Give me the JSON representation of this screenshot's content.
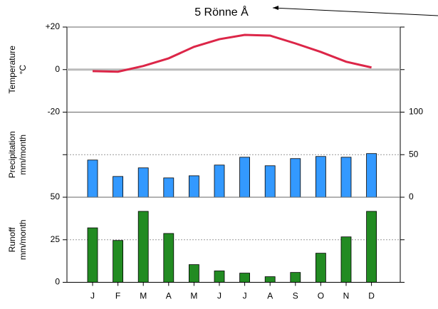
{
  "chart_data": [
    {
      "type": "line",
      "title": "5 Rönne Å",
      "ylabel": [
        "Temperature",
        "°C"
      ],
      "categories": [
        "J",
        "F",
        "M",
        "A",
        "M",
        "J",
        "J",
        "A",
        "S",
        "O",
        "N",
        "D"
      ],
      "values": [
        -0.7,
        -1,
        1.7,
        5.3,
        10.7,
        14.3,
        16.3,
        16,
        12.3,
        8.3,
        3.7,
        1
      ],
      "color": "#dc2648",
      "ylim": [
        -20,
        20
      ],
      "yticks": [
        {
          "value": 20,
          "label": "+20"
        },
        0,
        -20
      ],
      "ytick_side": "left",
      "grid": true
    },
    {
      "type": "bar",
      "ylabel": [
        "Precipitation",
        "mm/month"
      ],
      "categories": [
        "J",
        "F",
        "M",
        "A",
        "M",
        "J",
        "J",
        "A",
        "S",
        "O",
        "N",
        "D"
      ],
      "values": [
        43.7,
        24.4,
        34.5,
        22.7,
        25.2,
        37.8,
        47,
        37,
        45.4,
        47.9,
        47,
        51.3
      ],
      "color": "#3399ff",
      "ylim": [
        0,
        100
      ],
      "yticks": [
        0,
        50,
        100
      ],
      "ytick_side": "right",
      "grid": true
    },
    {
      "type": "bar",
      "ylabel": [
        "Runoff",
        "mm/month"
      ],
      "categories": [
        "J",
        "F",
        "M",
        "A",
        "M",
        "J",
        "J",
        "A",
        "S",
        "O",
        "N",
        "D"
      ],
      "values": [
        32,
        24.6,
        41.7,
        28.7,
        10.4,
        6.7,
        5.4,
        3.3,
        5.8,
        17.1,
        26.7,
        41.7
      ],
      "color": "#228b22",
      "ylim": [
        0,
        50
      ],
      "yticks": [
        0,
        25,
        50
      ],
      "ytick_side": "left",
      "grid": true
    }
  ]
}
